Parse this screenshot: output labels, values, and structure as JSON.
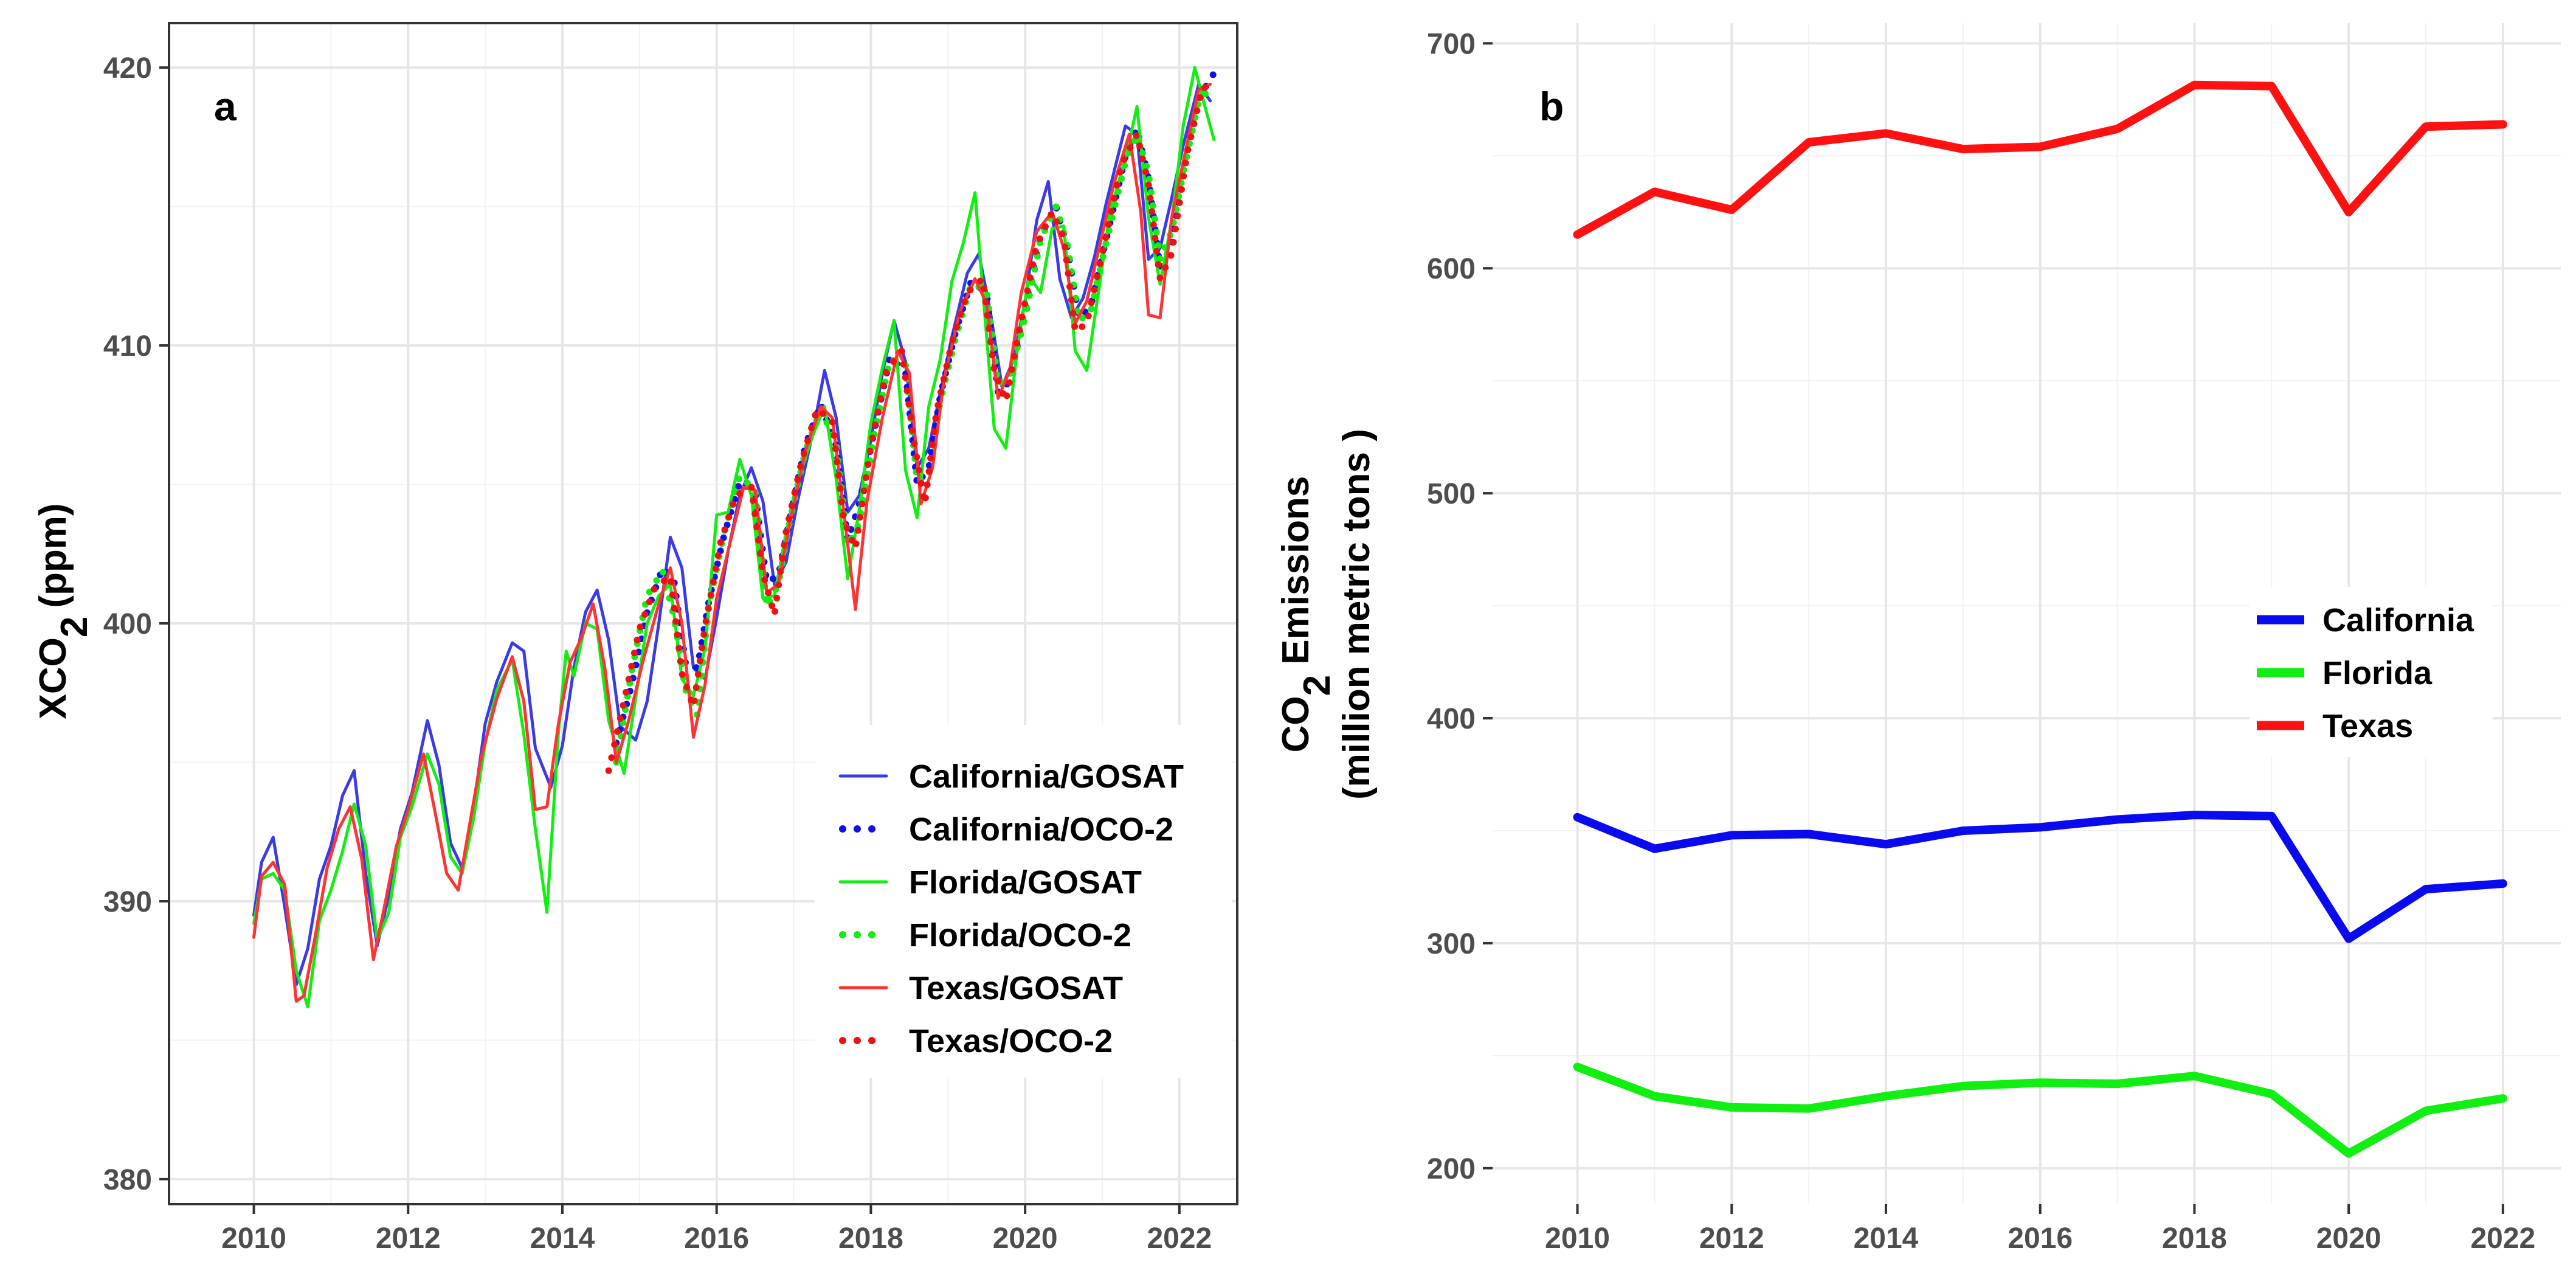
{
  "chart_data": [
    {
      "panel_label": "a",
      "type": "line",
      "title": "",
      "xlabel": "",
      "ylabel_main": "XCO",
      "ylabel_sub": "2",
      "ylabel_unit": "(ppm)",
      "xlim": [
        2008.9,
        2022.75
      ],
      "ylim": [
        379.1,
        421.6
      ],
      "xticks": [
        2010,
        2012,
        2014,
        2016,
        2018,
        2020,
        2022
      ],
      "yticks": [
        380,
        390,
        400,
        410,
        420
      ],
      "grid": true,
      "legend_position": "bottom-right",
      "series": [
        {
          "name": "California/GOSAT",
          "color": "#3b3be6",
          "style": "solid",
          "x": [
            2010.0,
            2010.1,
            2010.25,
            2010.4,
            2010.55,
            2010.7,
            2010.85,
            2011.0,
            2011.15,
            2011.3,
            2011.45,
            2011.6,
            2011.75,
            2011.9,
            2012.05,
            2012.25,
            2012.4,
            2012.55,
            2012.7,
            2012.85,
            2013.0,
            2013.15,
            2013.35,
            2013.5,
            2013.65,
            2013.85,
            2014.0,
            2014.15,
            2014.3,
            2014.45,
            2014.6,
            2014.75,
            2014.95,
            2015.1,
            2015.25,
            2015.4,
            2015.55,
            2015.7,
            2015.85,
            2016.0,
            2016.15,
            2016.3,
            2016.45,
            2016.6,
            2016.75,
            2016.9,
            2017.05,
            2017.25,
            2017.4,
            2017.55,
            2017.7,
            2017.85,
            2018.0,
            2018.15,
            2018.3,
            2018.45,
            2018.6,
            2018.75,
            2018.9,
            2019.05,
            2019.25,
            2019.4,
            2019.55,
            2019.7,
            2019.85,
            2020.0,
            2020.15,
            2020.3,
            2020.45,
            2020.6,
            2020.75,
            2020.9,
            2021.05,
            2021.3,
            2021.45,
            2021.6,
            2021.75,
            2021.9,
            2022.05,
            2022.25,
            2022.4
          ],
          "values": [
            389.5,
            391.4,
            392.3,
            389.8,
            387.0,
            388.3,
            390.8,
            392.0,
            393.8,
            394.7,
            391.0,
            388.4,
            390.2,
            392.6,
            393.9,
            396.5,
            394.9,
            392.1,
            391.2,
            393.4,
            396.4,
            397.9,
            399.3,
            399.0,
            395.5,
            394.1,
            395.6,
            398.4,
            400.4,
            401.2,
            399.4,
            396.3,
            395.8,
            397.2,
            400.0,
            403.1,
            402.0,
            398.4,
            398.0,
            400.2,
            402.6,
            404.6,
            405.6,
            404.4,
            401.4,
            402.2,
            404.4,
            406.9,
            409.1,
            407.4,
            404.0,
            404.6,
            406.6,
            409.0,
            410.9,
            409.4,
            405.6,
            406.3,
            408.3,
            410.3,
            412.6,
            413.3,
            411.2,
            408.5,
            409.5,
            411.6,
            414.5,
            415.9,
            412.4,
            411.0,
            411.7,
            413.2,
            415.1,
            417.9,
            417.6,
            413.1,
            413.5,
            415.3,
            417.2,
            419.4,
            418.8
          ]
        },
        {
          "name": "California/OCO-2",
          "color": "#1010ee",
          "style": "dotted",
          "x": [
            2014.7,
            2014.9,
            2015.1,
            2015.3,
            2015.45,
            2015.6,
            2015.75,
            2015.9,
            2016.1,
            2016.3,
            2016.5,
            2016.65,
            2016.8,
            2016.95,
            2017.15,
            2017.35,
            2017.55,
            2017.7,
            2017.85,
            2018.05,
            2018.25,
            2018.45,
            2018.6,
            2018.75,
            2018.9,
            2019.1,
            2019.3,
            2019.5,
            2019.65,
            2019.8,
            2020.0,
            2020.2,
            2020.4,
            2020.55,
            2020.7,
            2020.85,
            2021.05,
            2021.3,
            2021.45,
            2021.6,
            2021.75,
            2021.9,
            2022.05,
            2022.25,
            2022.45
          ],
          "values": [
            395.7,
            397.8,
            400.4,
            402.0,
            401.5,
            398.5,
            398.4,
            400.8,
            403.2,
            405.1,
            404.7,
            401.5,
            401.7,
            403.8,
            406.4,
            407.9,
            406.4,
            403.0,
            404.3,
            407.0,
            409.6,
            409.0,
            405.0,
            405.6,
            408.2,
            410.5,
            412.3,
            411.9,
            408.3,
            408.7,
            411.3,
            413.9,
            415.0,
            413.5,
            411.0,
            411.4,
            413.8,
            416.8,
            417.8,
            416.0,
            412.8,
            413.6,
            416.3,
            418.9,
            419.8
          ]
        },
        {
          "name": "Florida/GOSAT",
          "color": "#11ee11",
          "style": "solid",
          "x": [
            2010.0,
            2010.1,
            2010.25,
            2010.4,
            2010.55,
            2010.7,
            2010.85,
            2011.0,
            2011.15,
            2011.3,
            2011.45,
            2011.6,
            2011.75,
            2011.9,
            2012.05,
            2012.25,
            2012.4,
            2012.55,
            2012.7,
            2012.85,
            2013.0,
            2013.15,
            2013.35,
            2013.5,
            2013.65,
            2013.8,
            2013.95,
            2014.05,
            2014.15,
            2014.3,
            2014.45,
            2014.6,
            2014.8,
            2014.95,
            2015.1,
            2015.25,
            2015.4,
            2015.55,
            2015.7,
            2015.85,
            2016.0,
            2016.15,
            2016.3,
            2016.45,
            2016.6,
            2016.75,
            2016.9,
            2017.05,
            2017.25,
            2017.4,
            2017.55,
            2017.7,
            2017.85,
            2018.0,
            2018.15,
            2018.3,
            2018.45,
            2018.6,
            2018.75,
            2018.9,
            2019.05,
            2019.2,
            2019.35,
            2019.45,
            2019.6,
            2019.75,
            2019.9,
            2020.05,
            2020.2,
            2020.35,
            2020.5,
            2020.65,
            2020.8,
            2020.95,
            2021.1,
            2021.3,
            2021.45,
            2021.6,
            2021.75,
            2021.9,
            2022.05,
            2022.2,
            2022.35,
            2022.45
          ],
          "values": [
            389.2,
            390.8,
            391.0,
            390.4,
            387.5,
            386.2,
            389.3,
            390.4,
            391.8,
            393.5,
            392.0,
            388.6,
            389.6,
            392.3,
            393.4,
            395.3,
            394.2,
            391.6,
            391.0,
            393.0,
            395.7,
            397.6,
            398.7,
            396.0,
            392.6,
            389.6,
            396.1,
            399.0,
            398.1,
            400.0,
            399.8,
            396.5,
            394.6,
            397.3,
            400.0,
            401.0,
            401.4,
            398.0,
            397.4,
            399.1,
            403.9,
            404.0,
            405.9,
            404.6,
            400.9,
            401.0,
            403.2,
            405.1,
            406.8,
            407.8,
            405.2,
            401.6,
            404.1,
            407.2,
            409.2,
            410.9,
            405.5,
            403.8,
            407.8,
            409.5,
            412.3,
            413.7,
            415.5,
            412.0,
            407.0,
            406.3,
            409.9,
            412.5,
            411.9,
            414.2,
            414.3,
            409.8,
            409.1,
            411.9,
            414.8,
            416.7,
            418.6,
            414.6,
            412.2,
            414.5,
            417.9,
            420.0,
            418.4,
            417.4
          ]
        },
        {
          "name": "Florida/OCO-2",
          "color": "#11ee11",
          "style": "dotted",
          "x": [
            2014.7,
            2014.9,
            2015.1,
            2015.3,
            2015.45,
            2015.6,
            2015.75,
            2015.9,
            2016.1,
            2016.3,
            2016.5,
            2016.65,
            2016.8,
            2016.95,
            2017.15,
            2017.35,
            2017.55,
            2017.7,
            2017.85,
            2018.05,
            2018.25,
            2018.45,
            2018.6,
            2018.75,
            2018.9,
            2019.1,
            2019.3,
            2019.5,
            2019.65,
            2019.8,
            2020.0,
            2020.2,
            2020.4,
            2020.55,
            2020.7,
            2020.85,
            2021.05,
            2021.3,
            2021.45,
            2021.6,
            2021.75,
            2021.9,
            2022.05,
            2022.25,
            2022.45
          ],
          "values": [
            395.0,
            398.3,
            401.0,
            401.9,
            400.2,
            397.6,
            396.7,
            400.6,
            403.3,
            405.3,
            404.8,
            400.6,
            401.4,
            403.7,
            406.2,
            407.7,
            406.5,
            402.8,
            403.6,
            406.9,
            409.5,
            409.3,
            405.1,
            405.3,
            408.0,
            410.3,
            412.2,
            412.0,
            408.6,
            408.9,
            411.0,
            413.8,
            415.0,
            413.6,
            410.9,
            411.2,
            413.7,
            416.6,
            417.6,
            416.2,
            413.1,
            414.1,
            416.2,
            418.8,
            419.4
          ]
        },
        {
          "name": "Texas/GOSAT",
          "color": "#ff3333",
          "style": "solid",
          "x": [
            2010.0,
            2010.1,
            2010.25,
            2010.4,
            2010.55,
            2010.65,
            2010.8,
            2010.95,
            2011.1,
            2011.25,
            2011.4,
            2011.55,
            2011.7,
            2011.85,
            2012.0,
            2012.2,
            2012.35,
            2012.5,
            2012.65,
            2012.8,
            2012.95,
            2013.15,
            2013.35,
            2013.5,
            2013.65,
            2013.8,
            2013.95,
            2014.1,
            2014.25,
            2014.4,
            2014.55,
            2014.7,
            2014.85,
            2015.05,
            2015.25,
            2015.4,
            2015.55,
            2015.7,
            2015.85,
            2016.0,
            2016.2,
            2016.35,
            2016.5,
            2016.65,
            2016.8,
            2016.95,
            2017.15,
            2017.35,
            2017.5,
            2017.65,
            2017.8,
            2017.95,
            2018.15,
            2018.35,
            2018.5,
            2018.65,
            2018.8,
            2018.95,
            2019.15,
            2019.35,
            2019.5,
            2019.65,
            2019.8,
            2019.95,
            2020.15,
            2020.35,
            2020.5,
            2020.65,
            2020.8,
            2020.95,
            2021.15,
            2021.35,
            2021.5,
            2021.6,
            2021.75,
            2021.9,
            2022.05,
            2022.25,
            2022.4
          ],
          "values": [
            388.7,
            390.9,
            391.4,
            390.6,
            386.4,
            386.6,
            388.8,
            391.2,
            392.6,
            393.4,
            391.5,
            387.9,
            389.9,
            392.0,
            393.3,
            395.3,
            393.2,
            391.0,
            390.4,
            392.8,
            395.2,
            397.3,
            398.8,
            397.2,
            393.3,
            393.4,
            396.4,
            398.6,
            399.5,
            400.7,
            398.4,
            395.0,
            396.4,
            398.7,
            400.7,
            402.0,
            400.0,
            395.9,
            397.8,
            400.9,
            403.2,
            404.9,
            404.8,
            401.1,
            401.4,
            403.6,
            406.2,
            407.8,
            407.4,
            404.0,
            400.5,
            404.4,
            407.4,
            409.8,
            409.0,
            404.3,
            405.6,
            408.8,
            411.2,
            412.4,
            411.5,
            408.1,
            409.1,
            411.9,
            414.1,
            414.8,
            413.5,
            410.8,
            411.6,
            413.4,
            415.8,
            417.6,
            414.8,
            411.1,
            411.0,
            414.6,
            416.6,
            419.2,
            419.4
          ]
        },
        {
          "name": "Texas/OCO-2",
          "color": "#ee1111",
          "style": "dotted",
          "x": [
            2014.6,
            2014.8,
            2015.0,
            2015.2,
            2015.4,
            2015.55,
            2015.7,
            2015.85,
            2016.05,
            2016.25,
            2016.45,
            2016.6,
            2016.75,
            2016.9,
            2017.1,
            2017.3,
            2017.5,
            2017.65,
            2017.8,
            2018.0,
            2018.2,
            2018.4,
            2018.55,
            2018.7,
            2018.85,
            2019.05,
            2019.25,
            2019.45,
            2019.6,
            2019.75,
            2019.95,
            2020.15,
            2020.35,
            2020.5,
            2020.65,
            2020.8,
            2021.0,
            2021.25,
            2021.45,
            2021.6,
            2021.75,
            2021.9,
            2022.1,
            2022.3,
            2022.45
          ],
          "values": [
            394.7,
            397.2,
            399.8,
            401.3,
            401.7,
            398.2,
            397.0,
            399.9,
            402.9,
            404.6,
            404.9,
            401.8,
            400.3,
            403.3,
            405.8,
            407.7,
            407.3,
            403.7,
            402.7,
            406.4,
            409.1,
            409.8,
            406.7,
            404.3,
            407.6,
            410.1,
            411.9,
            412.4,
            409.1,
            408.0,
            410.9,
            413.6,
            414.8,
            413.9,
            410.5,
            410.8,
            413.3,
            416.5,
            417.6,
            415.8,
            412.4,
            413.3,
            416.9,
            419.3,
            419.2
          ]
        }
      ]
    },
    {
      "panel_label": "b",
      "type": "line",
      "title": "",
      "xlabel": "",
      "ylabel_line1_main": "CO",
      "ylabel_line1_sub": "2",
      "ylabel_line1_rest": " Emissions",
      "ylabel_line2": "(million metric tons )",
      "xlim": [
        2008.9,
        2022.75
      ],
      "ylim": [
        184,
        709
      ],
      "xticks": [
        2010,
        2012,
        2014,
        2016,
        2018,
        2020,
        2022
      ],
      "yticks": [
        200,
        300,
        400,
        500,
        600,
        700
      ],
      "grid": true,
      "legend_position": "right",
      "x": [
        2010,
        2011,
        2012,
        2013,
        2014,
        2015,
        2016,
        2017,
        2018,
        2019,
        2020,
        2021,
        2022
      ],
      "series": [
        {
          "name": "California",
          "color": "#0a0aee",
          "values": [
            356,
            342,
            348,
            348.5,
            344,
            350,
            351.5,
            355,
            357,
            356.5,
            302,
            324,
            326.5
          ]
        },
        {
          "name": "Florida",
          "color": "#11ee11",
          "values": [
            245,
            232,
            227,
            226.5,
            232,
            236.5,
            238,
            237.5,
            241,
            233,
            206.5,
            225.5,
            231
          ]
        },
        {
          "name": "Texas",
          "color": "#ff1111",
          "values": [
            615,
            634,
            626,
            656,
            660,
            653,
            654,
            662,
            681.5,
            681,
            625,
            663,
            664
          ]
        }
      ]
    }
  ]
}
